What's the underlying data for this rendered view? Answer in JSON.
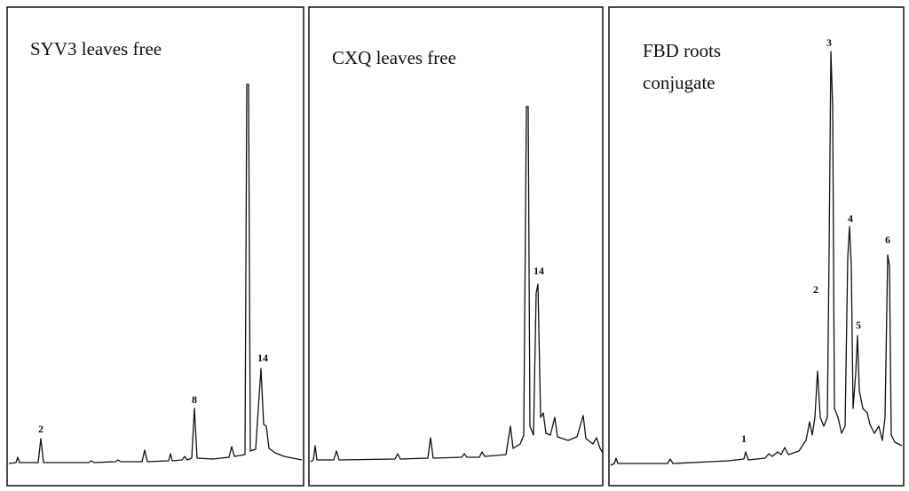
{
  "panels": [
    {
      "title_lines": [
        "SYV3 leaves free"
      ],
      "peak_labels": [
        "2",
        "8",
        "14"
      ]
    },
    {
      "title_lines": [
        "CXQ leaves free"
      ],
      "peak_labels": [
        "14"
      ]
    },
    {
      "title_lines": [
        "FBD  roots",
        "conjugate"
      ],
      "peak_labels": [
        "1",
        "2",
        "3",
        "4",
        "5",
        "6"
      ]
    }
  ]
}
